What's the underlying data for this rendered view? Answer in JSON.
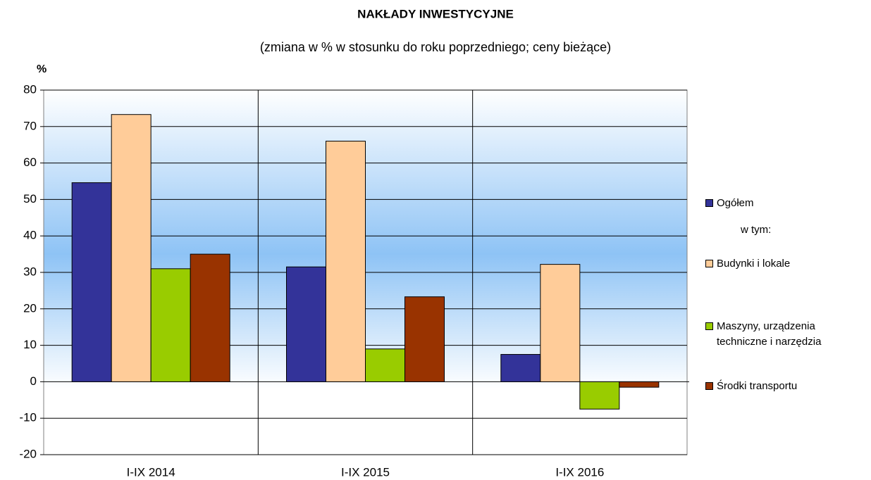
{
  "chart_data": {
    "type": "bar",
    "title": "NAKŁADY  INWESTYCYJNE",
    "subtitle": "(zmiana w % w stosunku do roku poprzedniego; ceny bieżące)",
    "y_label": "%",
    "categories": [
      "I-IX 2014",
      "I-IX 2015",
      "I-IX 2016"
    ],
    "series": [
      {
        "name": "Ogółem",
        "color": "#333399",
        "values": [
          54.6,
          31.5,
          7.5
        ]
      },
      {
        "name": "Budynki i lokale",
        "color": "#ffcc99",
        "values": [
          73.3,
          66,
          32.2
        ]
      },
      {
        "name": "Maszyny, urządzenia techniczne i narzędzia",
        "color": "#99cc00",
        "values": [
          31,
          9,
          -7.5
        ]
      },
      {
        "name": "Środki transportu",
        "color": "#993300",
        "values": [
          35,
          23.3,
          -1.5
        ]
      }
    ],
    "legend_note": "w tym:",
    "ylim": [
      -20,
      80
    ],
    "yticks": [
      -20,
      -10,
      0,
      10,
      20,
      30,
      40,
      50,
      60,
      70,
      80
    ],
    "grid": true,
    "legend": "right"
  }
}
